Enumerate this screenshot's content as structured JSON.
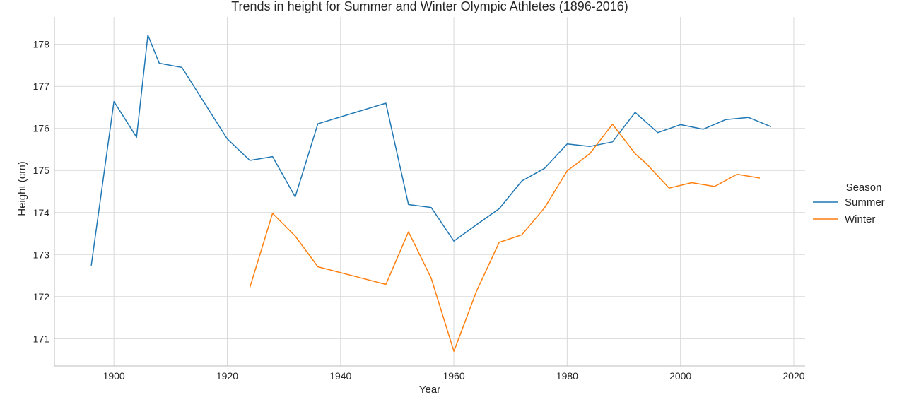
{
  "chart_data": {
    "type": "line",
    "title": "Trends in height for Summer and Winter Olympic Athletes (1896-2016)",
    "xlabel": "Year",
    "ylabel": "Height (cm)",
    "xlim": [
      1889.5,
      2022
    ],
    "ylim": [
      170.35,
      178.65
    ],
    "xticks": [
      1900,
      1920,
      1940,
      1960,
      1980,
      2000,
      2020
    ],
    "yticks": [
      171,
      172,
      173,
      174,
      175,
      176,
      177,
      178
    ],
    "grid": true,
    "legend": {
      "title": "Season",
      "placement": "right"
    },
    "series": [
      {
        "name": "Summer",
        "color": "#1f77b4",
        "x": [
          1896,
          1900,
          1904,
          1906,
          1908,
          1912,
          1920,
          1924,
          1928,
          1932,
          1936,
          1948,
          1952,
          1956,
          1960,
          1964,
          1968,
          1972,
          1976,
          1980,
          1984,
          1988,
          1992,
          1996,
          2000,
          2004,
          2008,
          2012,
          2016
        ],
        "values": [
          172.74,
          176.64,
          175.79,
          178.22,
          177.55,
          177.45,
          175.75,
          175.24,
          175.33,
          174.37,
          176.11,
          176.6,
          174.19,
          174.12,
          173.32,
          173.71,
          174.09,
          174.75,
          175.05,
          175.63,
          175.57,
          175.68,
          176.38,
          175.9,
          176.09,
          175.98,
          176.21,
          176.26,
          176.04
        ]
      },
      {
        "name": "Winter",
        "color": "#ff7f0e",
        "x": [
          1924,
          1928,
          1932,
          1936,
          1948,
          1952,
          1956,
          1960,
          1964,
          1968,
          1972,
          1976,
          1980,
          1984,
          1988,
          1992,
          1994,
          1998,
          2002,
          2006,
          2010,
          2014
        ],
        "values": [
          172.22,
          173.98,
          173.44,
          172.71,
          172.29,
          173.54,
          172.44,
          170.7,
          172.13,
          173.29,
          173.47,
          174.11,
          174.99,
          175.4,
          176.1,
          175.4,
          175.16,
          174.58,
          174.71,
          174.62,
          174.91,
          174.82
        ]
      }
    ]
  }
}
